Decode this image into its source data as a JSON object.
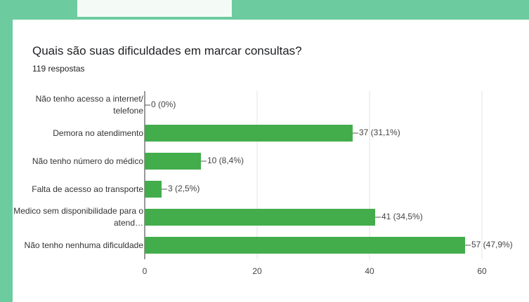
{
  "chart_data": {
    "type": "bar",
    "orientation": "horizontal",
    "title": "Quais são suas dificuldades em marcar consultas?",
    "subtitle": "119 respostas",
    "categories": [
      "Não tenho acesso a internet/ telefone",
      "Demora no atendimento",
      "Não tenho número do médico",
      "Falta de acesso ao transporte",
      "Medico sem disponibilidade para o atend…",
      "Não tenho nenhuma dificuldade"
    ],
    "values": [
      0,
      37,
      10,
      3,
      41,
      57
    ],
    "value_labels": [
      "0 (0%)",
      "37 (31,1%)",
      "10 (8,4%)",
      "3 (2,5%)",
      "41 (34,5%)",
      "57 (47,9%)"
    ],
    "color": "#43ad4c",
    "xlim": [
      0,
      60
    ],
    "xticks": [
      0,
      20,
      40,
      60
    ],
    "grid": true
  }
}
